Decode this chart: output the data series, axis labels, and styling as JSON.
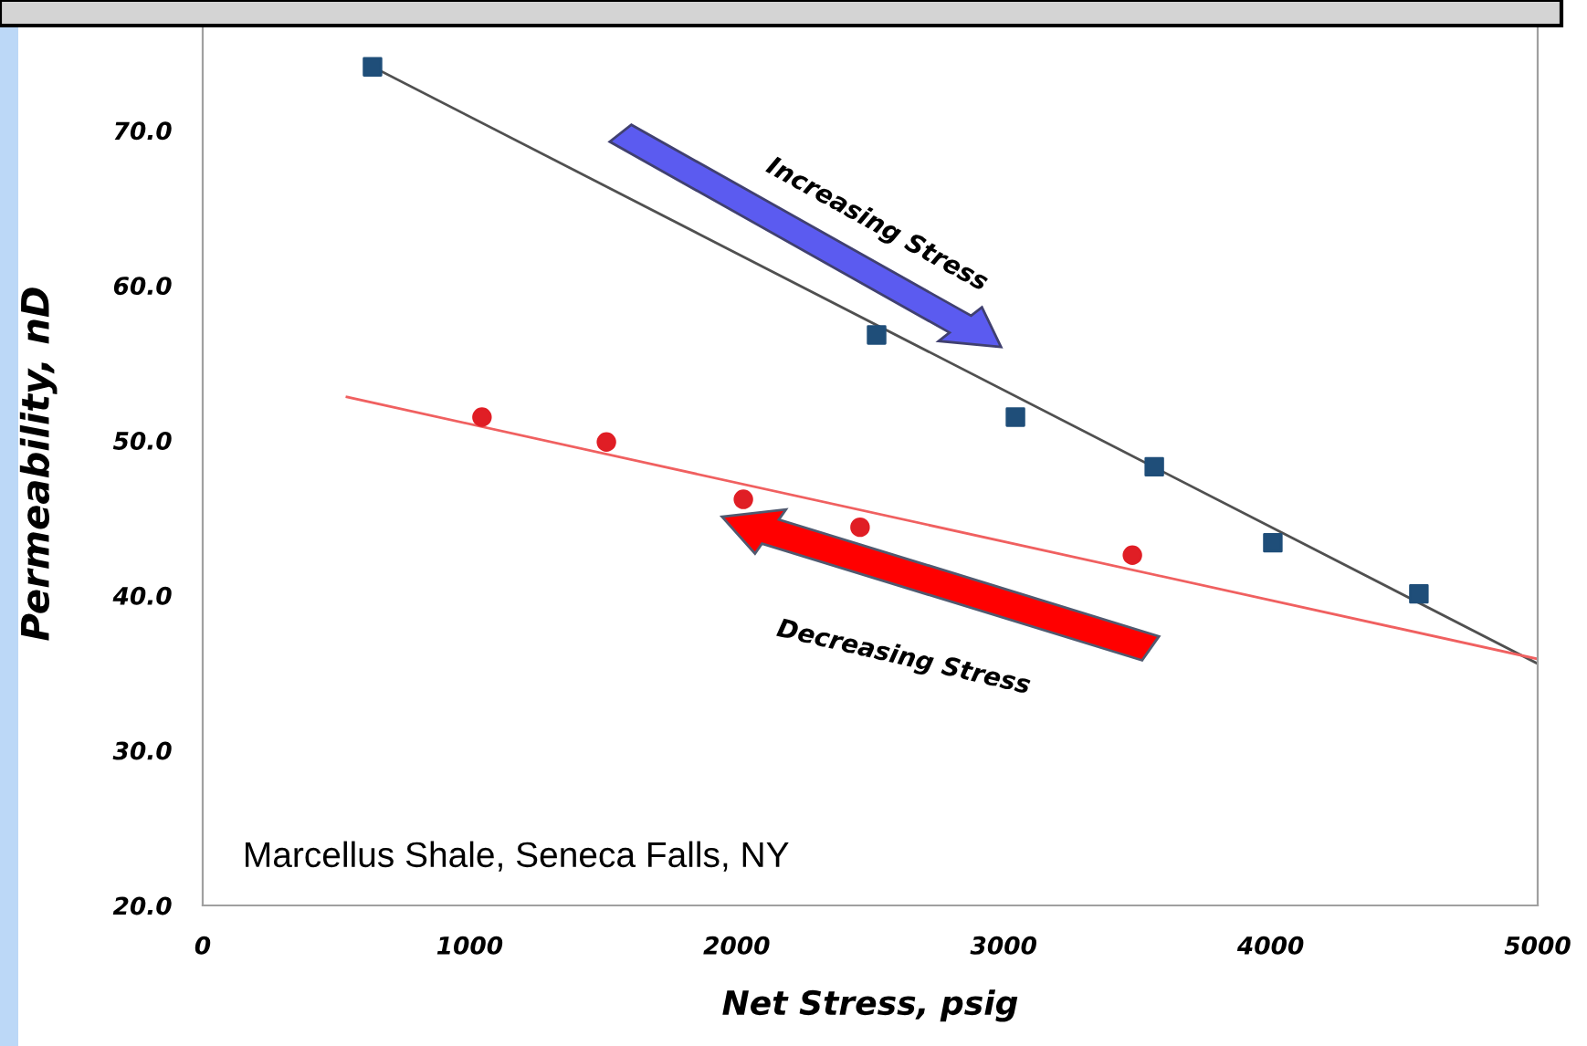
{
  "chart_data": {
    "type": "scatter",
    "xlabel": "Net Stress, psig",
    "ylabel": "Permeability, nD",
    "xlim": [
      0,
      5000
    ],
    "xticks": [
      0,
      1000,
      2000,
      3000,
      4000,
      5000
    ],
    "ylim": [
      20,
      77
    ],
    "yticks": [
      {
        "value": 20,
        "label": "20.0"
      },
      {
        "value": 30,
        "label": "30.0"
      },
      {
        "value": 40,
        "label": "40.0"
      },
      {
        "value": 50,
        "label": "50.0"
      },
      {
        "value": 60,
        "label": "60.0"
      },
      {
        "value": 70,
        "label": "70.0"
      }
    ],
    "grid": false,
    "legend": false,
    "series": [
      {
        "marker": "square",
        "color": "#1f4e79",
        "x": [
          636,
          2524,
          3044,
          3564,
          4008,
          4555
        ],
        "values": [
          74.1,
          56.8,
          51.5,
          48.3,
          43.4,
          40.1
        ]
      },
      {
        "marker": "circle",
        "color": "#e01e25",
        "x": [
          1046,
          1512,
          2025,
          2462,
          3482
        ],
        "values": [
          51.5,
          49.9,
          46.2,
          44.4,
          42.6
        ]
      },
      {
        "type": "line",
        "marker": "none",
        "color": "#505050",
        "x": [
          636,
          5000
        ],
        "values": [
          74.1,
          35.6
        ]
      },
      {
        "type": "line",
        "marker": "none",
        "color": "#f06060",
        "x": [
          540,
          5000
        ],
        "values": [
          52.8,
          35.9
        ]
      }
    ],
    "annotations": [
      "Increasing Stress",
      "Decreasing Stress",
      "Marcellus Shale, Seneca Falls, NY"
    ]
  }
}
